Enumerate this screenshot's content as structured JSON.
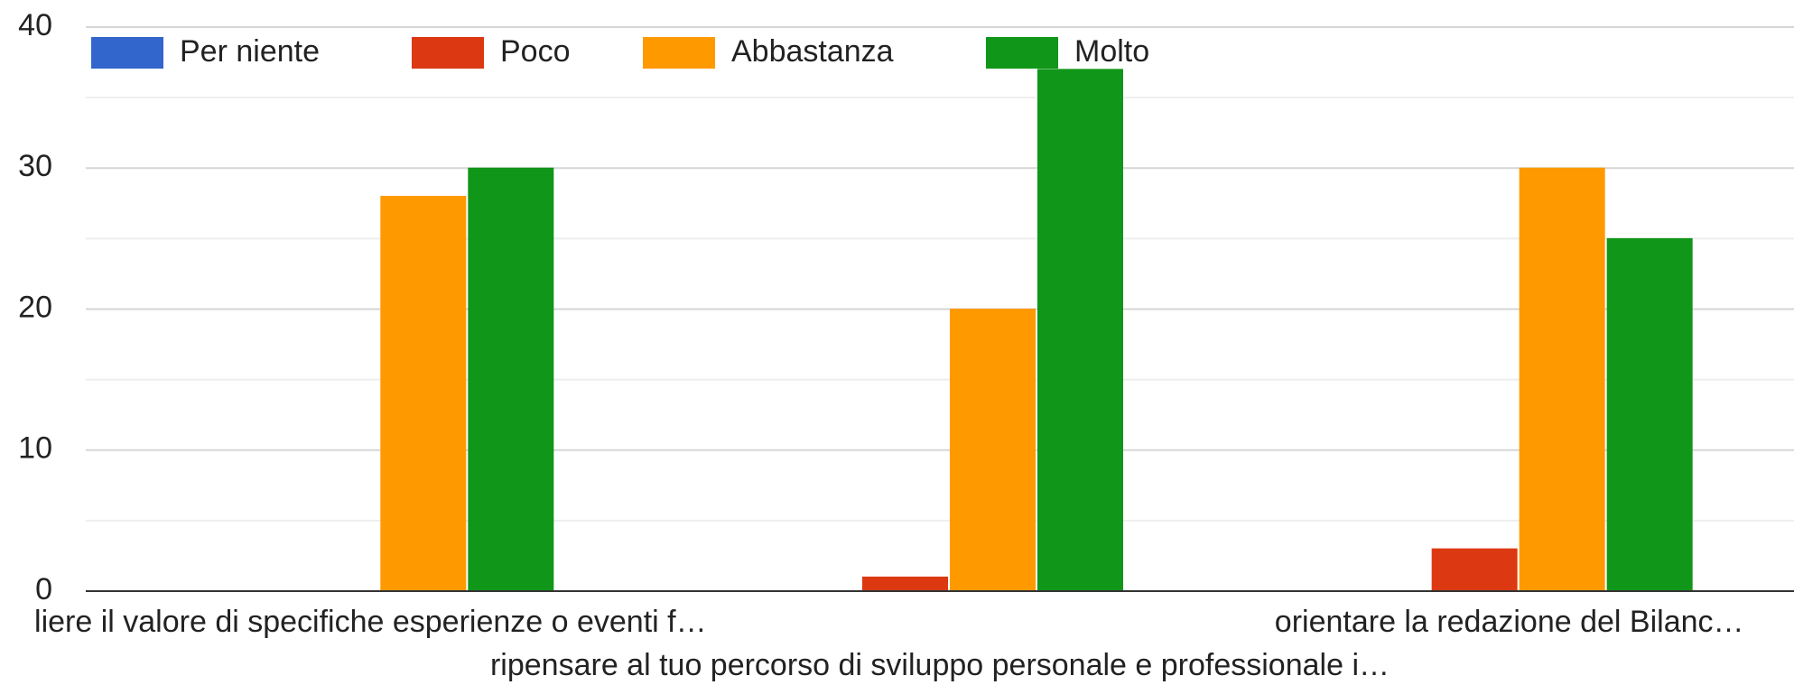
{
  "chart_data": {
    "type": "bar",
    "categories": [
      "liere il valore di specifiche esperienze o eventi f…",
      "ripensare al tuo percorso di sviluppo personale e professionale i…",
      "orientare la redazione del Bilanc…"
    ],
    "series": [
      {
        "name": "Per niente",
        "color": "#3366cc",
        "values": [
          0,
          0,
          0
        ]
      },
      {
        "name": "Poco",
        "color": "#dc3912",
        "values": [
          0,
          1,
          3
        ]
      },
      {
        "name": "Abbastanza",
        "color": "#ff9900",
        "values": [
          28,
          20,
          30
        ]
      },
      {
        "name": "Molto",
        "color": "#109618",
        "values": [
          30,
          37,
          25
        ]
      }
    ],
    "ylim": [
      0,
      40
    ],
    "yticks": [
      0,
      10,
      20,
      30,
      40
    ],
    "grid": true,
    "legend": "top"
  }
}
